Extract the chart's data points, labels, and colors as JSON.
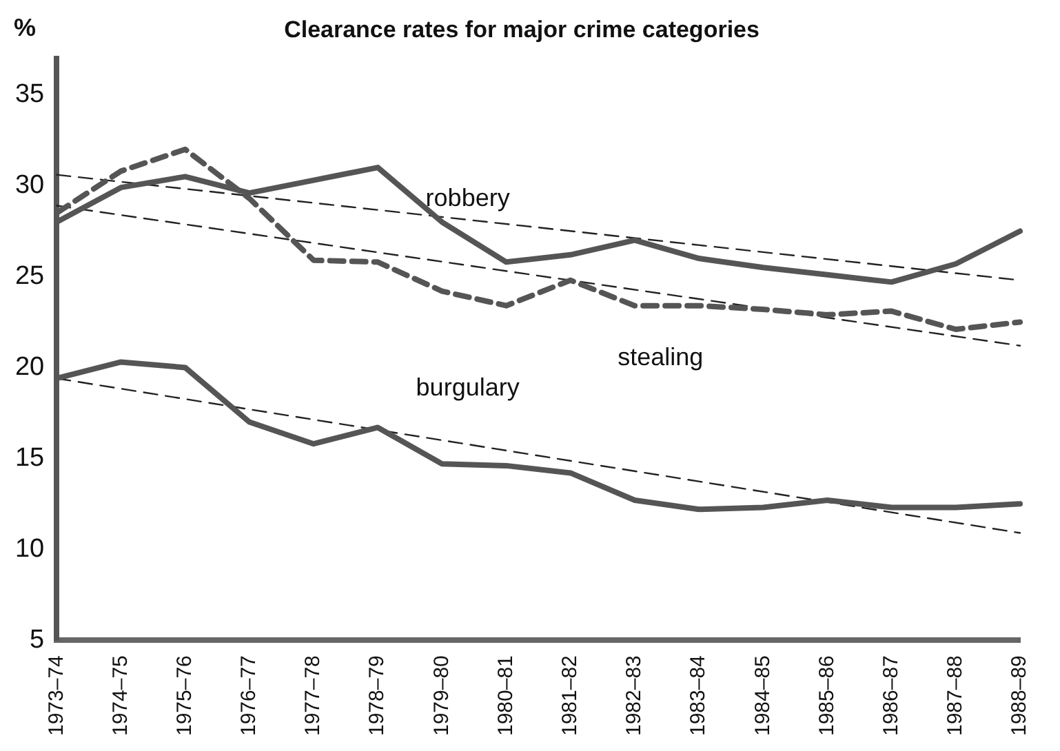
{
  "chart_data": {
    "type": "line",
    "title": "Clearance rates for major crime categories",
    "ylabel": "%",
    "categories": [
      "1973–74",
      "1974–75",
      "1975–76",
      "1976–77",
      "1977–78",
      "1978–79",
      "1979–80",
      "1980–81",
      "1981–82",
      "1982–83",
      "1983–84",
      "1984–85",
      "1985–86",
      "1986–87",
      "1987–88",
      "1988–89"
    ],
    "series": [
      {
        "name": "robbery",
        "color": "#555555",
        "line_style": "solid",
        "values": [
          28.0,
          29.9,
          30.5,
          29.6,
          30.3,
          31.0,
          28.0,
          25.8,
          26.2,
          27.0,
          26.0,
          25.5,
          25.1,
          24.7,
          25.7,
          27.5
        ]
      },
      {
        "name": "stealing",
        "color": "#555555",
        "line_style": "dashed",
        "values": [
          28.5,
          30.8,
          32.0,
          29.3,
          25.9,
          25.8,
          24.2,
          23.4,
          24.8,
          23.4,
          23.4,
          23.2,
          22.9,
          23.1,
          22.1,
          22.5
        ]
      },
      {
        "name": "burgulary",
        "color": "#555555",
        "line_style": "solid",
        "values": [
          19.4,
          20.3,
          20.0,
          17.0,
          15.8,
          16.7,
          14.7,
          14.6,
          14.2,
          12.7,
          12.2,
          12.3,
          12.7,
          12.3,
          12.3,
          12.5
        ]
      },
      {
        "color": "#222222",
        "line_style": "dashed",
        "x": [
          "1973–74",
          "1988–89"
        ],
        "values": [
          30.6,
          24.8
        ]
      },
      {
        "color": "#222222",
        "line_style": "dashed",
        "x": [
          "1973–74",
          "1988–89"
        ],
        "values": [
          28.9,
          21.2
        ]
      },
      {
        "color": "#222222",
        "line_style": "dashed",
        "x": [
          "1973–74",
          "1988–89"
        ],
        "values": [
          19.4,
          10.9
        ]
      }
    ],
    "ylim": [
      5,
      37
    ],
    "yticks": [
      5,
      10,
      15,
      20,
      25,
      30,
      35
    ],
    "grid": false,
    "legend": false,
    "marker": "none"
  }
}
